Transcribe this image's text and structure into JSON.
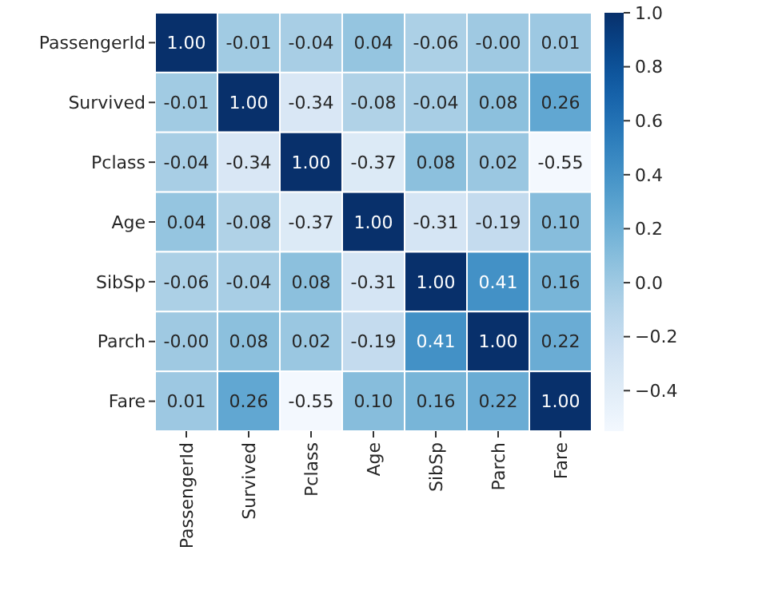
{
  "chart_data": {
    "type": "heatmap",
    "categories": [
      "PassengerId",
      "Survived",
      "Pclass",
      "Age",
      "SibSp",
      "Parch",
      "Fare"
    ],
    "y_categories": [
      "PassengerId",
      "Survived",
      "Pclass",
      "Age",
      "SibSp",
      "Parch",
      "Fare"
    ],
    "cells": [
      [
        1.0,
        -0.01,
        -0.04,
        0.04,
        -0.06,
        0.0,
        0.01
      ],
      [
        -0.01,
        1.0,
        -0.34,
        -0.08,
        -0.04,
        0.08,
        0.26
      ],
      [
        -0.04,
        -0.34,
        1.0,
        -0.37,
        0.08,
        0.02,
        -0.55
      ],
      [
        0.04,
        -0.08,
        -0.37,
        1.0,
        -0.31,
        -0.19,
        0.1
      ],
      [
        -0.06,
        -0.04,
        0.08,
        -0.31,
        1.0,
        0.41,
        0.16
      ],
      [
        0.0,
        0.08,
        0.02,
        -0.19,
        0.41,
        1.0,
        0.22
      ],
      [
        0.01,
        0.26,
        -0.55,
        0.1,
        0.16,
        0.22,
        1.0
      ]
    ],
    "cell_labels": [
      [
        "1.00",
        "-0.01",
        "-0.04",
        "0.04",
        "-0.06",
        "-0.00",
        "0.01"
      ],
      [
        "-0.01",
        "1.00",
        "-0.34",
        "-0.08",
        "-0.04",
        "0.08",
        "0.26"
      ],
      [
        "-0.04",
        "-0.34",
        "1.00",
        "-0.37",
        "0.08",
        "0.02",
        "-0.55"
      ],
      [
        "0.04",
        "-0.08",
        "-0.37",
        "1.00",
        "-0.31",
        "-0.19",
        "0.10"
      ],
      [
        "-0.06",
        "-0.04",
        "0.08",
        "-0.31",
        "1.00",
        "0.41",
        "0.16"
      ],
      [
        "-0.00",
        "0.08",
        "0.02",
        "-0.19",
        "0.41",
        "1.00",
        "0.22"
      ],
      [
        "0.01",
        "0.26",
        "-0.55",
        "0.10",
        "0.16",
        "0.22",
        "1.00"
      ]
    ],
    "clim": [
      -0.55,
      1.0
    ],
    "cticks": [
      {
        "value": -0.4,
        "label": "−0.4"
      },
      {
        "value": -0.2,
        "label": "−0.2"
      },
      {
        "value": 0,
        "label": "0.0"
      },
      {
        "value": 0.2,
        "label": "0.2"
      },
      {
        "value": 0.4,
        "label": "0.4"
      },
      {
        "value": 0.6,
        "label": "0.6"
      },
      {
        "value": 0.8,
        "label": "0.8"
      },
      {
        "value": 1,
        "label": "1.0"
      }
    ]
  }
}
